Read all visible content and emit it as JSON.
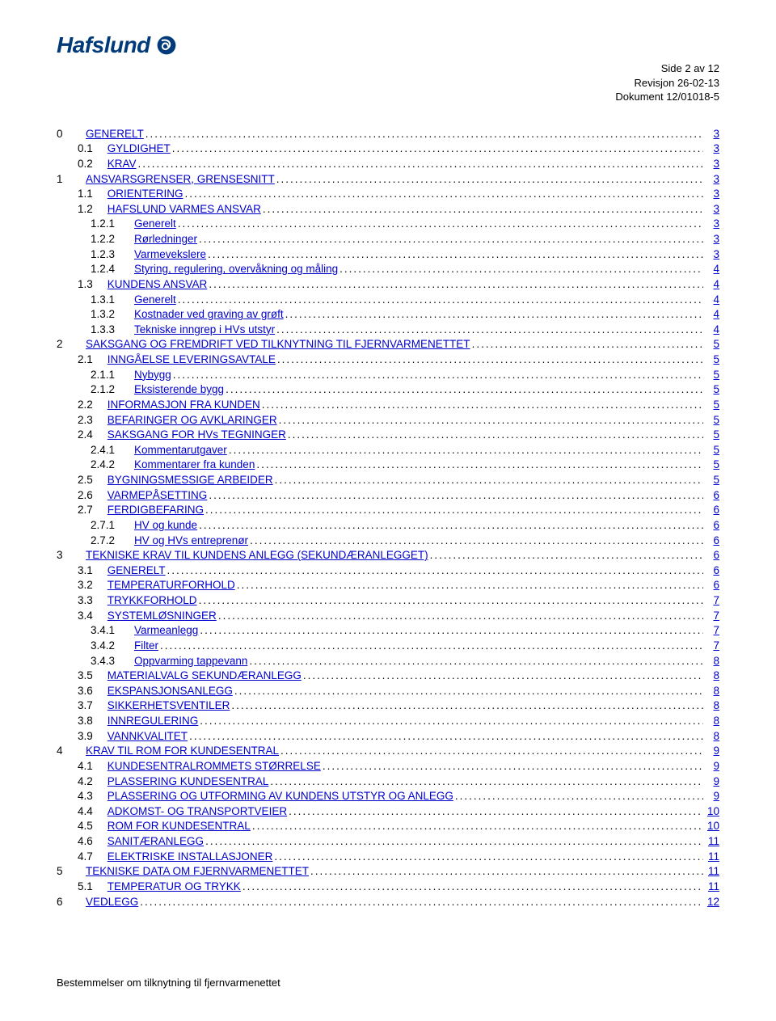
{
  "logo": {
    "text": "Hafslund"
  },
  "header": {
    "line1": "Side 2 av 12",
    "line2": "Revisjon 26-02-13",
    "line3": "Dokument 12/01018-5"
  },
  "colors": {
    "logo": "#003a78",
    "link": "#0000cc",
    "text": "#000000",
    "background": "#ffffff"
  },
  "footer": "Bestemmelser om tilknytning til fjernvarmenettet",
  "toc": [
    {
      "lvl": 0,
      "num": "0",
      "title": "GENERELT",
      "page": "3",
      "link": true
    },
    {
      "lvl": 1,
      "num": "0.1",
      "title": "GYLDIGHET",
      "page": "3",
      "link": true
    },
    {
      "lvl": 1,
      "num": "0.2",
      "title": "KRAV",
      "page": "3",
      "link": true
    },
    {
      "lvl": 0,
      "num": "1",
      "title": "ANSVARSGRENSER, GRENSESNITT",
      "page": "3",
      "link": true
    },
    {
      "lvl": 1,
      "num": "1.1",
      "title": "ORIENTERING",
      "page": "3",
      "link": true
    },
    {
      "lvl": 1,
      "num": "1.2",
      "title": "HAFSLUND VARMES ANSVAR",
      "page": "3",
      "link": true
    },
    {
      "lvl": 2,
      "num": "1.2.1",
      "title": "Generelt",
      "page": "3",
      "link": true
    },
    {
      "lvl": 2,
      "num": "1.2.2",
      "title": "Rørledninger",
      "page": "3",
      "link": true
    },
    {
      "lvl": 2,
      "num": "1.2.3",
      "title": "Varmevekslere",
      "page": "3",
      "link": true
    },
    {
      "lvl": 2,
      "num": "1.2.4",
      "title": "Styring, regulering, overvåkning og måling",
      "page": "4",
      "link": true
    },
    {
      "lvl": 1,
      "num": "1.3",
      "title": "KUNDENS ANSVAR",
      "page": "4",
      "link": true
    },
    {
      "lvl": 2,
      "num": "1.3.1",
      "title": "Generelt",
      "page": "4",
      "link": true
    },
    {
      "lvl": 2,
      "num": "1.3.2",
      "title": "Kostnader ved graving av grøft",
      "page": "4",
      "link": true
    },
    {
      "lvl": 2,
      "num": "1.3.3",
      "title": "Tekniske inngrep i HVs utstyr",
      "page": "4",
      "link": true
    },
    {
      "lvl": 0,
      "num": "2",
      "title": "SAKSGANG OG FREMDRIFT VED TILKNYTNING TIL FJERNVARMENETTET",
      "page": "5",
      "link": true
    },
    {
      "lvl": 1,
      "num": "2.1",
      "title": "INNGÅELSE LEVERINGSAVTALE",
      "page": "5",
      "link": true
    },
    {
      "lvl": 2,
      "num": "2.1.1",
      "title": "Nybygg",
      "page": "5",
      "link": true
    },
    {
      "lvl": 2,
      "num": "2.1.2",
      "title": "Eksisterende bygg",
      "page": "5",
      "link": true
    },
    {
      "lvl": 1,
      "num": "2.2",
      "title": "INFORMASJON FRA KUNDEN",
      "page": "5",
      "link": true
    },
    {
      "lvl": 1,
      "num": "2.3",
      "title": "BEFARINGER OG AVKLARINGER",
      "page": "5",
      "link": true
    },
    {
      "lvl": 1,
      "num": "2.4",
      "title": "SAKSGANG FOR HVs TEGNINGER",
      "page": "5",
      "link": true
    },
    {
      "lvl": 2,
      "num": "2.4.1",
      "title": "Kommentarutgaver",
      "page": "5",
      "link": true
    },
    {
      "lvl": 2,
      "num": "2.4.2",
      "title": "Kommentarer fra kunden",
      "page": "5",
      "link": true
    },
    {
      "lvl": 1,
      "num": "2.5",
      "title": "BYGNINGSMESSIGE ARBEIDER",
      "page": "5",
      "link": true
    },
    {
      "lvl": 1,
      "num": "2.6",
      "title": "VARMEPÅSETTING",
      "page": "6",
      "link": true
    },
    {
      "lvl": 1,
      "num": "2.7",
      "title": "FERDIGBEFARING",
      "page": "6",
      "link": true
    },
    {
      "lvl": 2,
      "num": "2.7.1",
      "title": "HV og kunde",
      "page": "6",
      "link": true
    },
    {
      "lvl": 2,
      "num": "2.7.2",
      "title": "HV og HVs entreprenør",
      "page": "6",
      "link": true
    },
    {
      "lvl": 0,
      "num": "3",
      "title": "TEKNISKE KRAV TIL KUNDENS ANLEGG (SEKUNDÆRANLEGGET)",
      "page": "6",
      "link": true
    },
    {
      "lvl": 1,
      "num": "3.1",
      "title": "GENERELT",
      "page": "6",
      "link": true
    },
    {
      "lvl": 1,
      "num": "3.2",
      "title": "TEMPERATURFORHOLD",
      "page": "6",
      "link": true
    },
    {
      "lvl": 1,
      "num": "3.3",
      "title": "TRYKKFORHOLD",
      "page": "7",
      "link": true
    },
    {
      "lvl": 1,
      "num": "3.4",
      "title": "SYSTEMLØSNINGER",
      "page": "7",
      "link": true
    },
    {
      "lvl": 2,
      "num": "3.4.1",
      "title": "Varmeanlegg",
      "page": "7",
      "link": true
    },
    {
      "lvl": 2,
      "num": "3.4.2",
      "title": "Filter",
      "page": "7",
      "link": true
    },
    {
      "lvl": 2,
      "num": "3.4.3",
      "title": "Oppvarming tappevann",
      "page": "8",
      "link": true
    },
    {
      "lvl": 1,
      "num": "3.5",
      "title": "MATERIALVALG SEKUNDÆRANLEGG",
      "page": "8",
      "link": true
    },
    {
      "lvl": 1,
      "num": "3.6",
      "title": "EKSPANSJONSANLEGG",
      "page": "8",
      "link": true
    },
    {
      "lvl": 1,
      "num": "3.7",
      "title": "SIKKERHETSVENTILER",
      "page": "8",
      "link": true
    },
    {
      "lvl": 1,
      "num": "3.8",
      "title": "INNREGULERING",
      "page": "8",
      "link": true
    },
    {
      "lvl": 1,
      "num": "3.9",
      "title": "VANNKVALITET",
      "page": "8",
      "link": true
    },
    {
      "lvl": 0,
      "num": "4",
      "title": "KRAV TIL ROM FOR KUNDESENTRAL",
      "page": "9",
      "link": true
    },
    {
      "lvl": 1,
      "num": "4.1",
      "title": "KUNDESENTRALROMMETS STØRRELSE",
      "page": "9",
      "link": true
    },
    {
      "lvl": 1,
      "num": "4.2",
      "title": "PLASSERING KUNDESENTRAL",
      "page": "9",
      "link": true
    },
    {
      "lvl": 1,
      "num": "4.3",
      "title": "PLASSERING OG UTFORMING AV KUNDENS UTSTYR OG ANLEGG",
      "page": "9",
      "link": true
    },
    {
      "lvl": 1,
      "num": "4.4",
      "title": "ADKOMST- OG TRANSPORTVEIER",
      "page": "10",
      "link": true
    },
    {
      "lvl": 1,
      "num": "4.5",
      "title": "ROM FOR KUNDESENTRAL",
      "page": "10",
      "link": true
    },
    {
      "lvl": 1,
      "num": "4.6",
      "title": "SANITÆRANLEGG",
      "page": "11",
      "link": true
    },
    {
      "lvl": 1,
      "num": "4.7",
      "title": "ELEKTRISKE INSTALLASJONER",
      "page": "11",
      "link": true
    },
    {
      "lvl": 0,
      "num": "5",
      "title": "TEKNISKE DATA OM FJERNVARMENETTET",
      "page": "11",
      "link": true
    },
    {
      "lvl": 1,
      "num": "5.1",
      "title": "TEMPERATUR OG TRYKK",
      "page": "11",
      "link": true
    },
    {
      "lvl": 0,
      "num": "6",
      "title": "VEDLEGG",
      "page": "12",
      "link": true
    }
  ]
}
